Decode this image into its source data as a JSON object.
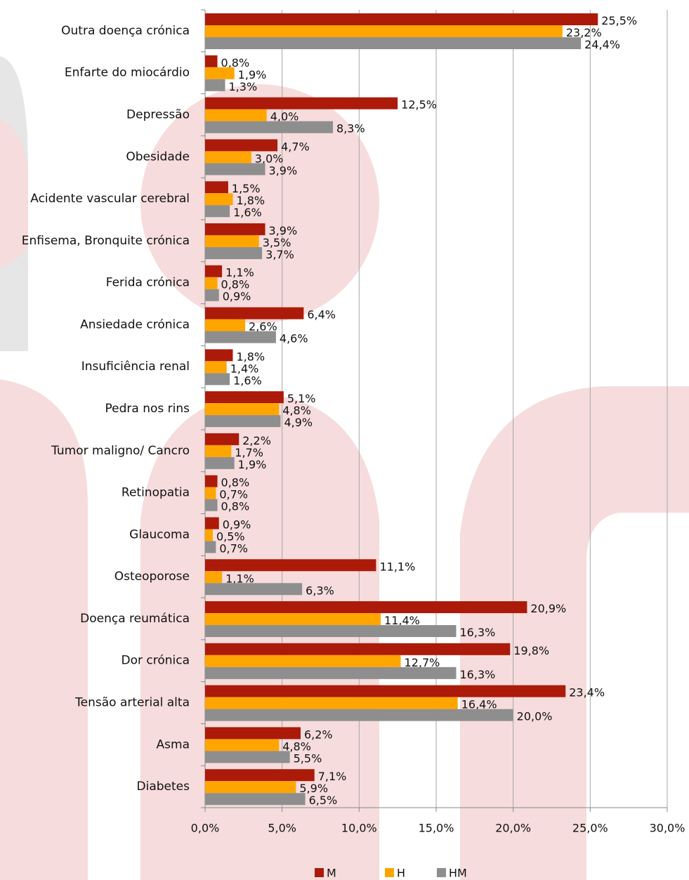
{
  "chart_data": {
    "type": "bar",
    "orientation": "horizontal",
    "categories": [
      "Outra doença crónica",
      "Enfarte do miocárdio",
      "Depressão",
      "Obesidade",
      "Acidente vascular cerebral",
      "Enfisema, Bronquite crónica",
      "Ferida crónica",
      "Ansiedade crónica",
      "Insuficiência renal",
      "Pedra nos rins",
      "Tumor maligno/ Cancro",
      "Retinopatia",
      "Glaucoma",
      "Osteoporose",
      "Doença reumática",
      "Dor crónica",
      "Tensão arterial alta",
      "Asma",
      "Diabetes"
    ],
    "series": [
      {
        "name": "M",
        "color": "#ac1a0a",
        "values": [
          25.5,
          0.8,
          12.5,
          4.7,
          1.5,
          3.9,
          1.1,
          6.4,
          1.8,
          5.1,
          2.2,
          0.8,
          0.9,
          11.1,
          20.9,
          19.8,
          23.4,
          6.2,
          7.1
        ],
        "value_labels": [
          "25,5%",
          "0,8%",
          "12,5%",
          "4,7%",
          "1,5%",
          "3,9%",
          "1,1%",
          "6,4%",
          "1,8%",
          "5,1%",
          "2,2%",
          "0,8%",
          "0,9%",
          "11,1%",
          "20,9%",
          "19,8%",
          "23,4%",
          "6,2%",
          "7,1%"
        ]
      },
      {
        "name": "H",
        "color": "#ffa500",
        "values": [
          23.2,
          1.9,
          4.0,
          3.0,
          1.8,
          3.5,
          0.8,
          2.6,
          1.4,
          4.8,
          1.7,
          0.7,
          0.5,
          1.1,
          11.4,
          12.7,
          16.4,
          4.8,
          5.9
        ],
        "value_labels": [
          "23,2%",
          "1,9%",
          "4,0%",
          "3,0%",
          "1,8%",
          "3,5%",
          "0,8%",
          "2,6%",
          "1,4%",
          "4,8%",
          "1,7%",
          "0,7%",
          "0,5%",
          "1,1%",
          "11,4%",
          "12,7%",
          "16,4%",
          "4,8%",
          "5,9%"
        ]
      },
      {
        "name": "HM",
        "color": "#8e8e8e",
        "values": [
          24.4,
          1.3,
          8.3,
          3.9,
          1.6,
          3.7,
          0.9,
          4.6,
          1.6,
          4.9,
          1.9,
          0.8,
          0.7,
          6.3,
          16.3,
          16.3,
          20.0,
          5.5,
          6.5
        ],
        "value_labels": [
          "24,4%",
          "1,3%",
          "8,3%",
          "3,9%",
          "1,6%",
          "3,7%",
          "0,9%",
          "4,6%",
          "1,6%",
          "4,9%",
          "1,9%",
          "0,8%",
          "0,7%",
          "6,3%",
          "16,3%",
          "16,3%",
          "20,0%",
          "5,5%",
          "6,5%"
        ]
      }
    ],
    "xlim": [
      0,
      30
    ],
    "xticks": [
      {
        "value": 0,
        "label": "0,0%"
      },
      {
        "value": 5,
        "label": "5,0%"
      },
      {
        "value": 10,
        "label": "10,0%"
      },
      {
        "value": 15,
        "label": "15,0%"
      },
      {
        "value": 20,
        "label": "20,0%"
      },
      {
        "value": 25,
        "label": "25,0%"
      },
      {
        "value": 30,
        "label": "30,0%"
      }
    ],
    "grid": true,
    "legend": "bottom"
  }
}
